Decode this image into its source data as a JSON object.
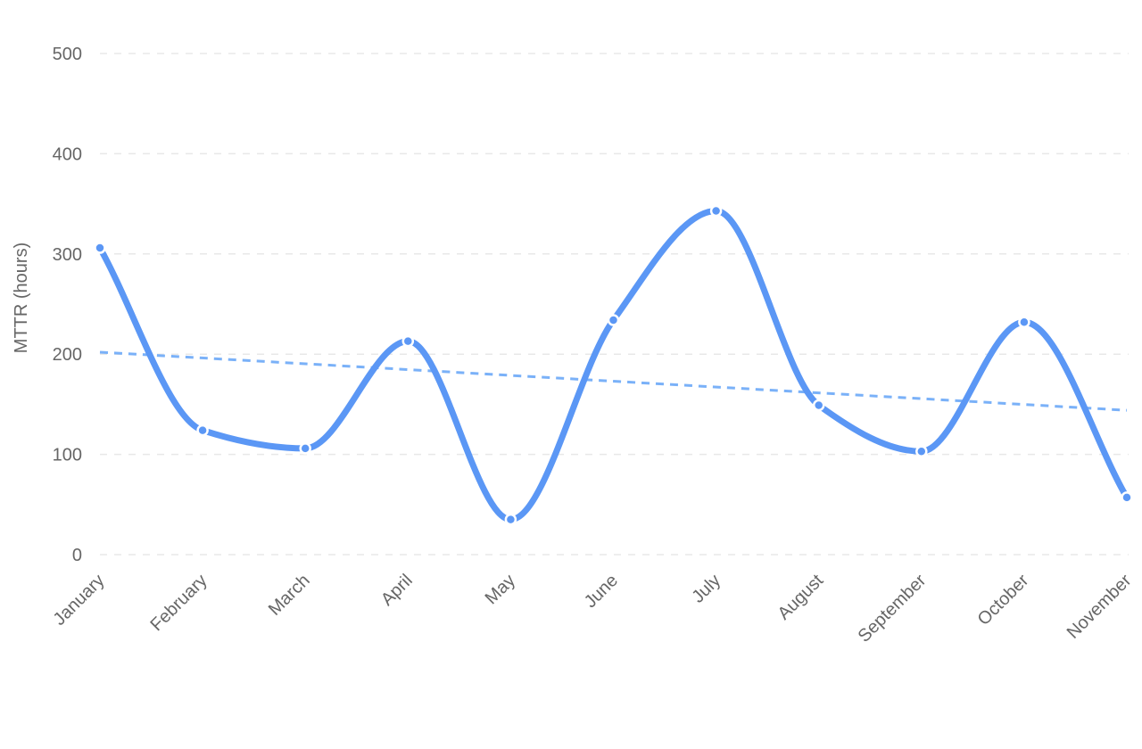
{
  "chart_data": {
    "type": "line",
    "title": "",
    "xlabel": "",
    "ylabel": "MTTR (hours)",
    "ylim": [
      0,
      500
    ],
    "yticks": [
      0,
      100,
      200,
      300,
      400,
      500
    ],
    "grid": true,
    "categories": [
      "January",
      "February",
      "March",
      "April",
      "May",
      "June",
      "July",
      "August",
      "September",
      "October",
      "November"
    ],
    "series": [
      {
        "color": "#5b97f5",
        "values": [
          306,
          124,
          106,
          213,
          35,
          234,
          343,
          149,
          103,
          232,
          57
        ]
      }
    ],
    "trendline": {
      "color": "#7ab1f8",
      "start": 202,
      "end": 144
    }
  }
}
